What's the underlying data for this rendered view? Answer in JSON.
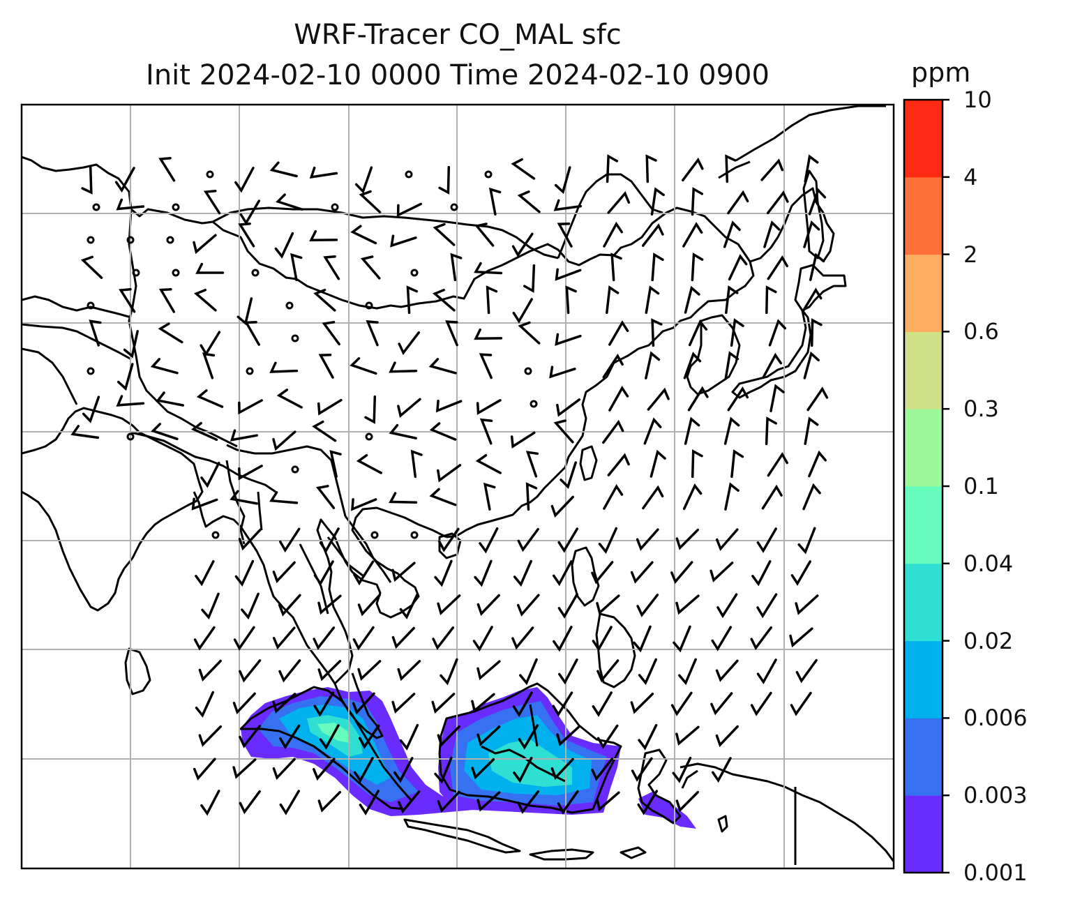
{
  "title": {
    "line1": "WRF-Tracer CO_MAL sfc",
    "line2": "Init 2024-02-10 0000 Time 2024-02-10 0900"
  },
  "colorbar": {
    "unit": "ppm",
    "levels": [
      "0.001",
      "0.003",
      "0.006",
      "0.02",
      "0.04",
      "0.1",
      "0.3",
      "0.6",
      "2",
      "4",
      "10"
    ],
    "colors": [
      "#6a2bff",
      "#3671f2",
      "#00b1ee",
      "#2fe0d2",
      "#67fbbd",
      "#9cfa9a",
      "#d0e18a",
      "#fdae61",
      "#ff7138",
      "#ff2a14"
    ]
  },
  "map": {
    "field": "CO_MAL sfc",
    "gridline_color": "#b0b0b0",
    "coastline_color": "#000000",
    "wind_barbs": true
  }
}
